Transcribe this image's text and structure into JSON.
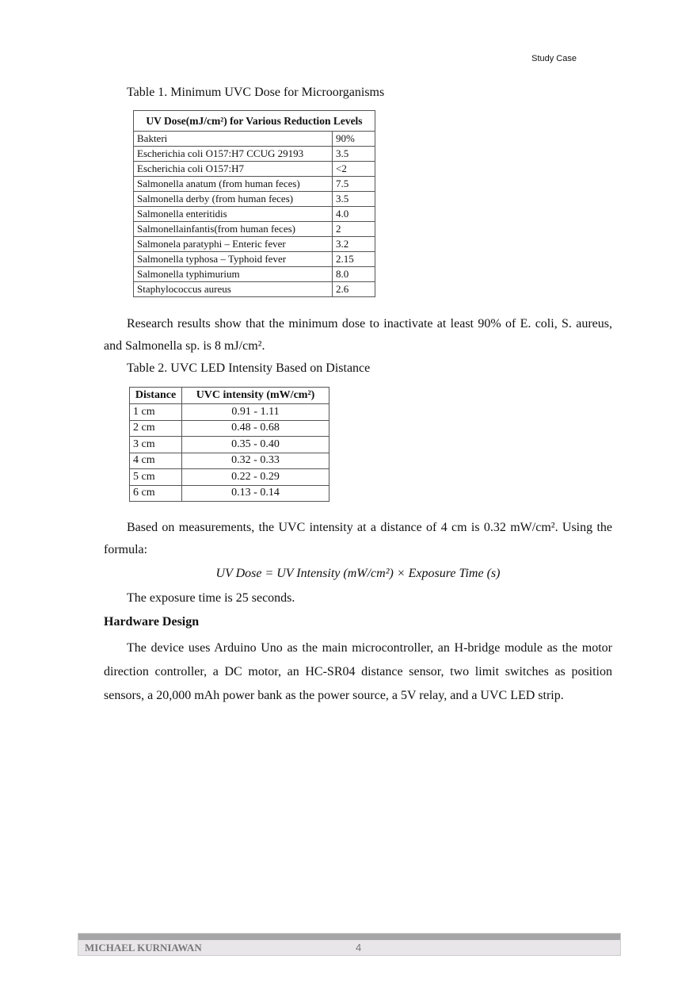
{
  "header": "Study Case",
  "table1": {
    "caption": "Table 1. Minimum UVC Dose for Microorganisms",
    "title": "UV Dose(mJ/cm²) for Various Reduction Levels",
    "rows": [
      [
        "Bakteri",
        "90%"
      ],
      [
        "Escherichia coli O157:H7 CCUG 29193",
        "3.5"
      ],
      [
        "Escherichia coli O157:H7",
        "<2"
      ],
      [
        "Salmonella anatum   (from   human feces)",
        "7.5"
      ],
      [
        "Salmonella derby (from human feces)",
        "3.5"
      ],
      [
        "Salmonella enteritidis",
        "4.0"
      ],
      [
        "Salmonellainfantis(from human feces)",
        "2"
      ],
      [
        "Salmonela paratyphi – Enteric fever",
        "3.2"
      ],
      [
        "Salmonella typhosa – Typhoid fever",
        "2.15"
      ],
      [
        "Salmonella typhimurium",
        "8.0"
      ],
      [
        "Staphylococcus aureus",
        "2.6"
      ]
    ]
  },
  "para1": "Research results show that the minimum dose to inactivate at least 90% of E. coli, S. aureus, and Salmonella sp. is 8 mJ/cm².",
  "table2": {
    "caption": "Table 2. UVC LED Intensity Based on Distance",
    "headers": [
      "Distance",
      "UVC intensity (mW/cm²)"
    ],
    "rows": [
      [
        "1 cm",
        "0.91 - 1.11"
      ],
      [
        "2 cm",
        "0.48 - 0.68"
      ],
      [
        "3 cm",
        "0.35 - 0.40"
      ],
      [
        "4 cm",
        "0.32 - 0.33"
      ],
      [
        "5 cm",
        "0.22 - 0.29"
      ],
      [
        "6 cm",
        "0.13 - 0.14"
      ]
    ]
  },
  "para2": "Based on measurements, the UVC intensity at a distance of 4 cm is 0.32 mW/cm². Using the formula:",
  "formula": "UV Dose = UV Intensity (mW/cm²) × Exposure Time (s)",
  "para3": "The exposure time is 25 seconds.",
  "heading": "Hardware Design",
  "para4": "The device uses Arduino Uno as the main microcontroller, an H-bridge module as the motor direction controller, a DC motor, an HC-SR04 distance sensor, two limit switches as position sensors, a 20,000 mAh power bank as the power source, a 5V relay, and a UVC LED strip.",
  "footer": {
    "author": "MICHAEL KURNIAWAN",
    "page": "4"
  }
}
